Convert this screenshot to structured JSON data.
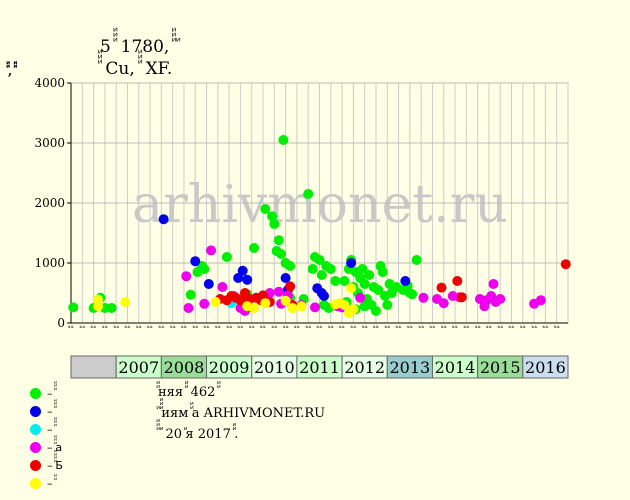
{
  "header": {
    "title_line1": "5 ꙵꙵꙵ 1780, ꙵꙵꙵ ꙵ",
    "title_line2": "ꙵꙵꙵ Cu, ꙵꙵꙵ XF.",
    "y_unit": "ꙵꙵ, ꙵꙵ"
  },
  "watermark": "arhivmonet.ru",
  "notes": {
    "line1": "ꙵꙵняя ꙵꙵ 462 ꙵꙵ",
    "line2": "ꙵ ꙵꙵꙵиям ꙵꙵа ARHIVMONET.RU",
    "line3": "ꙵꙵꙵ ꙵ 20 ꙵя 2017 ꙵꙵ."
  },
  "legend": [
    {
      "label": "– ꙵꙵꙵ",
      "color": "#00ee00"
    },
    {
      "label": "– ꙵꙵꙵ",
      "color": "#0000ee"
    },
    {
      "label": "– ꙵꙵꙵ",
      "color": "#00eeee"
    },
    {
      "label": "– ꙵꙵꙵа",
      "color": "#ee00ee"
    },
    {
      "label": "– ꙵꙵꙵꙵБ",
      "color": "#ee0000"
    },
    {
      "label": "– ꙵꙵ",
      "color": "#ffff00"
    }
  ],
  "chart_data": {
    "type": "scatter",
    "ylim": [
      0,
      4000
    ],
    "yticks": [
      0,
      1000,
      2000,
      3000,
      4000
    ],
    "quarter_labels": [
      "ꙵꙵ",
      "ꙵꙵ",
      "ꙵꙵ",
      "ꙵꙵ"
    ],
    "years": [
      {
        "label": "",
        "color": "#cccccc"
      },
      {
        "label": "2007",
        "color": "#ccffcc"
      },
      {
        "label": "2008",
        "color": "#99dd99"
      },
      {
        "label": "2009",
        "color": "#ccffcc"
      },
      {
        "label": "2010",
        "color": "#e6ffe6"
      },
      {
        "label": "2011",
        "color": "#ccffcc"
      },
      {
        "label": "2012",
        "color": "#e6ffe6"
      },
      {
        "label": "2013",
        "color": "#99cccc"
      },
      {
        "label": "2014",
        "color": "#ccffcc"
      },
      {
        "label": "2015",
        "color": "#99dd99"
      },
      {
        "label": "2016",
        "color": "#ccddee"
      }
    ],
    "x_start_year": 2006,
    "x_end_year": 2017,
    "series": [
      {
        "name": "– ꙵꙵꙵ",
        "color": "#00ee00",
        "points": [
          [
            2006.05,
            260
          ],
          [
            2006.5,
            250
          ],
          [
            2006.65,
            420
          ],
          [
            2006.75,
            250
          ],
          [
            2006.9,
            250
          ],
          [
            2008.65,
            470
          ],
          [
            2008.8,
            850
          ],
          [
            2008.9,
            950
          ],
          [
            2008.95,
            900
          ],
          [
            2009.45,
            1100
          ],
          [
            2009.9,
            480
          ],
          [
            2009.95,
            260
          ],
          [
            2010.05,
            1250
          ],
          [
            2010.3,
            1900
          ],
          [
            2010.45,
            1780
          ],
          [
            2010.5,
            1650
          ],
          [
            2010.55,
            1200
          ],
          [
            2010.6,
            1380
          ],
          [
            2010.65,
            1150
          ],
          [
            2010.7,
            3050
          ],
          [
            2010.75,
            1000
          ],
          [
            2010.85,
            950
          ],
          [
            2010.85,
            420
          ],
          [
            2011.15,
            400
          ],
          [
            2011.25,
            2150
          ],
          [
            2011.35,
            900
          ],
          [
            2011.4,
            1100
          ],
          [
            2011.5,
            1050
          ],
          [
            2011.55,
            800
          ],
          [
            2011.65,
            950
          ],
          [
            2011.75,
            900
          ],
          [
            2011.85,
            700
          ],
          [
            2011.6,
            300
          ],
          [
            2011.7,
            250
          ],
          [
            2012.05,
            700
          ],
          [
            2012.15,
            900
          ],
          [
            2012.2,
            1050
          ],
          [
            2012.25,
            600
          ],
          [
            2012.3,
            850
          ],
          [
            2012.35,
            500
          ],
          [
            2012.4,
            750
          ],
          [
            2012.45,
            900
          ],
          [
            2012.5,
            650
          ],
          [
            2012.55,
            400
          ],
          [
            2012.6,
            800
          ],
          [
            2012.65,
            300
          ],
          [
            2012.7,
            600
          ],
          [
            2012.75,
            200
          ],
          [
            2012.8,
            550
          ],
          [
            2012.85,
            950
          ],
          [
            2012.9,
            850
          ],
          [
            2012.95,
            450
          ],
          [
            2013.0,
            300
          ],
          [
            2013.05,
            650
          ],
          [
            2013.1,
            500
          ],
          [
            2013.2,
            600
          ],
          [
            2013.35,
            550
          ],
          [
            2013.5,
            500
          ],
          [
            2013.65,
            1050
          ],
          [
            2013.45,
            620
          ],
          [
            2013.55,
            480
          ],
          [
            2012.1,
            350
          ],
          [
            2012.5,
            280
          ],
          [
            2012.3,
            230
          ]
        ]
      },
      {
        "name": "– ꙵꙵꙵ",
        "color": "#0000ee",
        "points": [
          [
            2008.05,
            1730
          ],
          [
            2008.75,
            1030
          ],
          [
            2009.05,
            650
          ],
          [
            2009.7,
            750
          ],
          [
            2009.8,
            870
          ],
          [
            2009.9,
            720
          ],
          [
            2010.75,
            750
          ],
          [
            2010.8,
            550
          ],
          [
            2011.45,
            580
          ],
          [
            2011.6,
            450
          ],
          [
            2011.55,
            500
          ],
          [
            2012.2,
            1000
          ],
          [
            2013.4,
            700
          ]
        ]
      },
      {
        "name": "– ꙵꙵꙵ",
        "color": "#00eeee",
        "points": [
          [
            2009.55,
            330
          ],
          [
            2010.35,
            400
          ]
        ]
      },
      {
        "name": "– ꙵꙵꙵа",
        "color": "#ee00ee",
        "points": [
          [
            2008.55,
            780
          ],
          [
            2008.6,
            250
          ],
          [
            2008.95,
            320
          ],
          [
            2009.1,
            1210
          ],
          [
            2009.35,
            600
          ],
          [
            2009.6,
            450
          ],
          [
            2009.75,
            250
          ],
          [
            2009.85,
            200
          ],
          [
            2010.4,
            500
          ],
          [
            2010.6,
            520
          ],
          [
            2010.65,
            320
          ],
          [
            2010.8,
            460
          ],
          [
            2011.1,
            300
          ],
          [
            2011.4,
            260
          ],
          [
            2011.9,
            280
          ],
          [
            2012.0,
            260
          ],
          [
            2012.4,
            420
          ],
          [
            2013.8,
            420
          ],
          [
            2014.1,
            400
          ],
          [
            2014.25,
            330
          ],
          [
            2014.45,
            450
          ],
          [
            2014.6,
            430
          ],
          [
            2015.05,
            400
          ],
          [
            2015.15,
            280
          ],
          [
            2015.2,
            380
          ],
          [
            2015.3,
            450
          ],
          [
            2015.35,
            650
          ],
          [
            2015.4,
            350
          ],
          [
            2015.5,
            400
          ],
          [
            2016.25,
            320
          ],
          [
            2016.4,
            380
          ]
        ]
      },
      {
        "name": "– ꙵꙵꙵꙵБ",
        "color": "#ee0000",
        "points": [
          [
            2009.3,
            400
          ],
          [
            2009.45,
            380
          ],
          [
            2009.55,
            450
          ],
          [
            2009.65,
            420
          ],
          [
            2009.75,
            380
          ],
          [
            2009.85,
            500
          ],
          [
            2009.95,
            400
          ],
          [
            2010.1,
            420
          ],
          [
            2010.2,
            380
          ],
          [
            2010.25,
            460
          ],
          [
            2010.4,
            350
          ],
          [
            2010.85,
            610
          ],
          [
            2010.9,
            300
          ],
          [
            2014.2,
            590
          ],
          [
            2014.55,
            700
          ],
          [
            2014.65,
            430
          ],
          [
            2016.95,
            980
          ]
        ]
      },
      {
        "name": "– ꙵꙵ",
        "color": "#ffff00",
        "points": [
          [
            2006.6,
            390
          ],
          [
            2006.6,
            280
          ],
          [
            2007.2,
            350
          ],
          [
            2009.2,
            350
          ],
          [
            2009.9,
            280
          ],
          [
            2010.05,
            250
          ],
          [
            2010.3,
            330
          ],
          [
            2010.75,
            370
          ],
          [
            2010.9,
            250
          ],
          [
            2011.1,
            280
          ],
          [
            2011.95,
            330
          ],
          [
            2012.05,
            300
          ],
          [
            2012.15,
            170
          ],
          [
            2012.2,
            580
          ],
          [
            2011.85,
            310
          ],
          [
            2012.25,
            230
          ]
        ]
      }
    ]
  }
}
